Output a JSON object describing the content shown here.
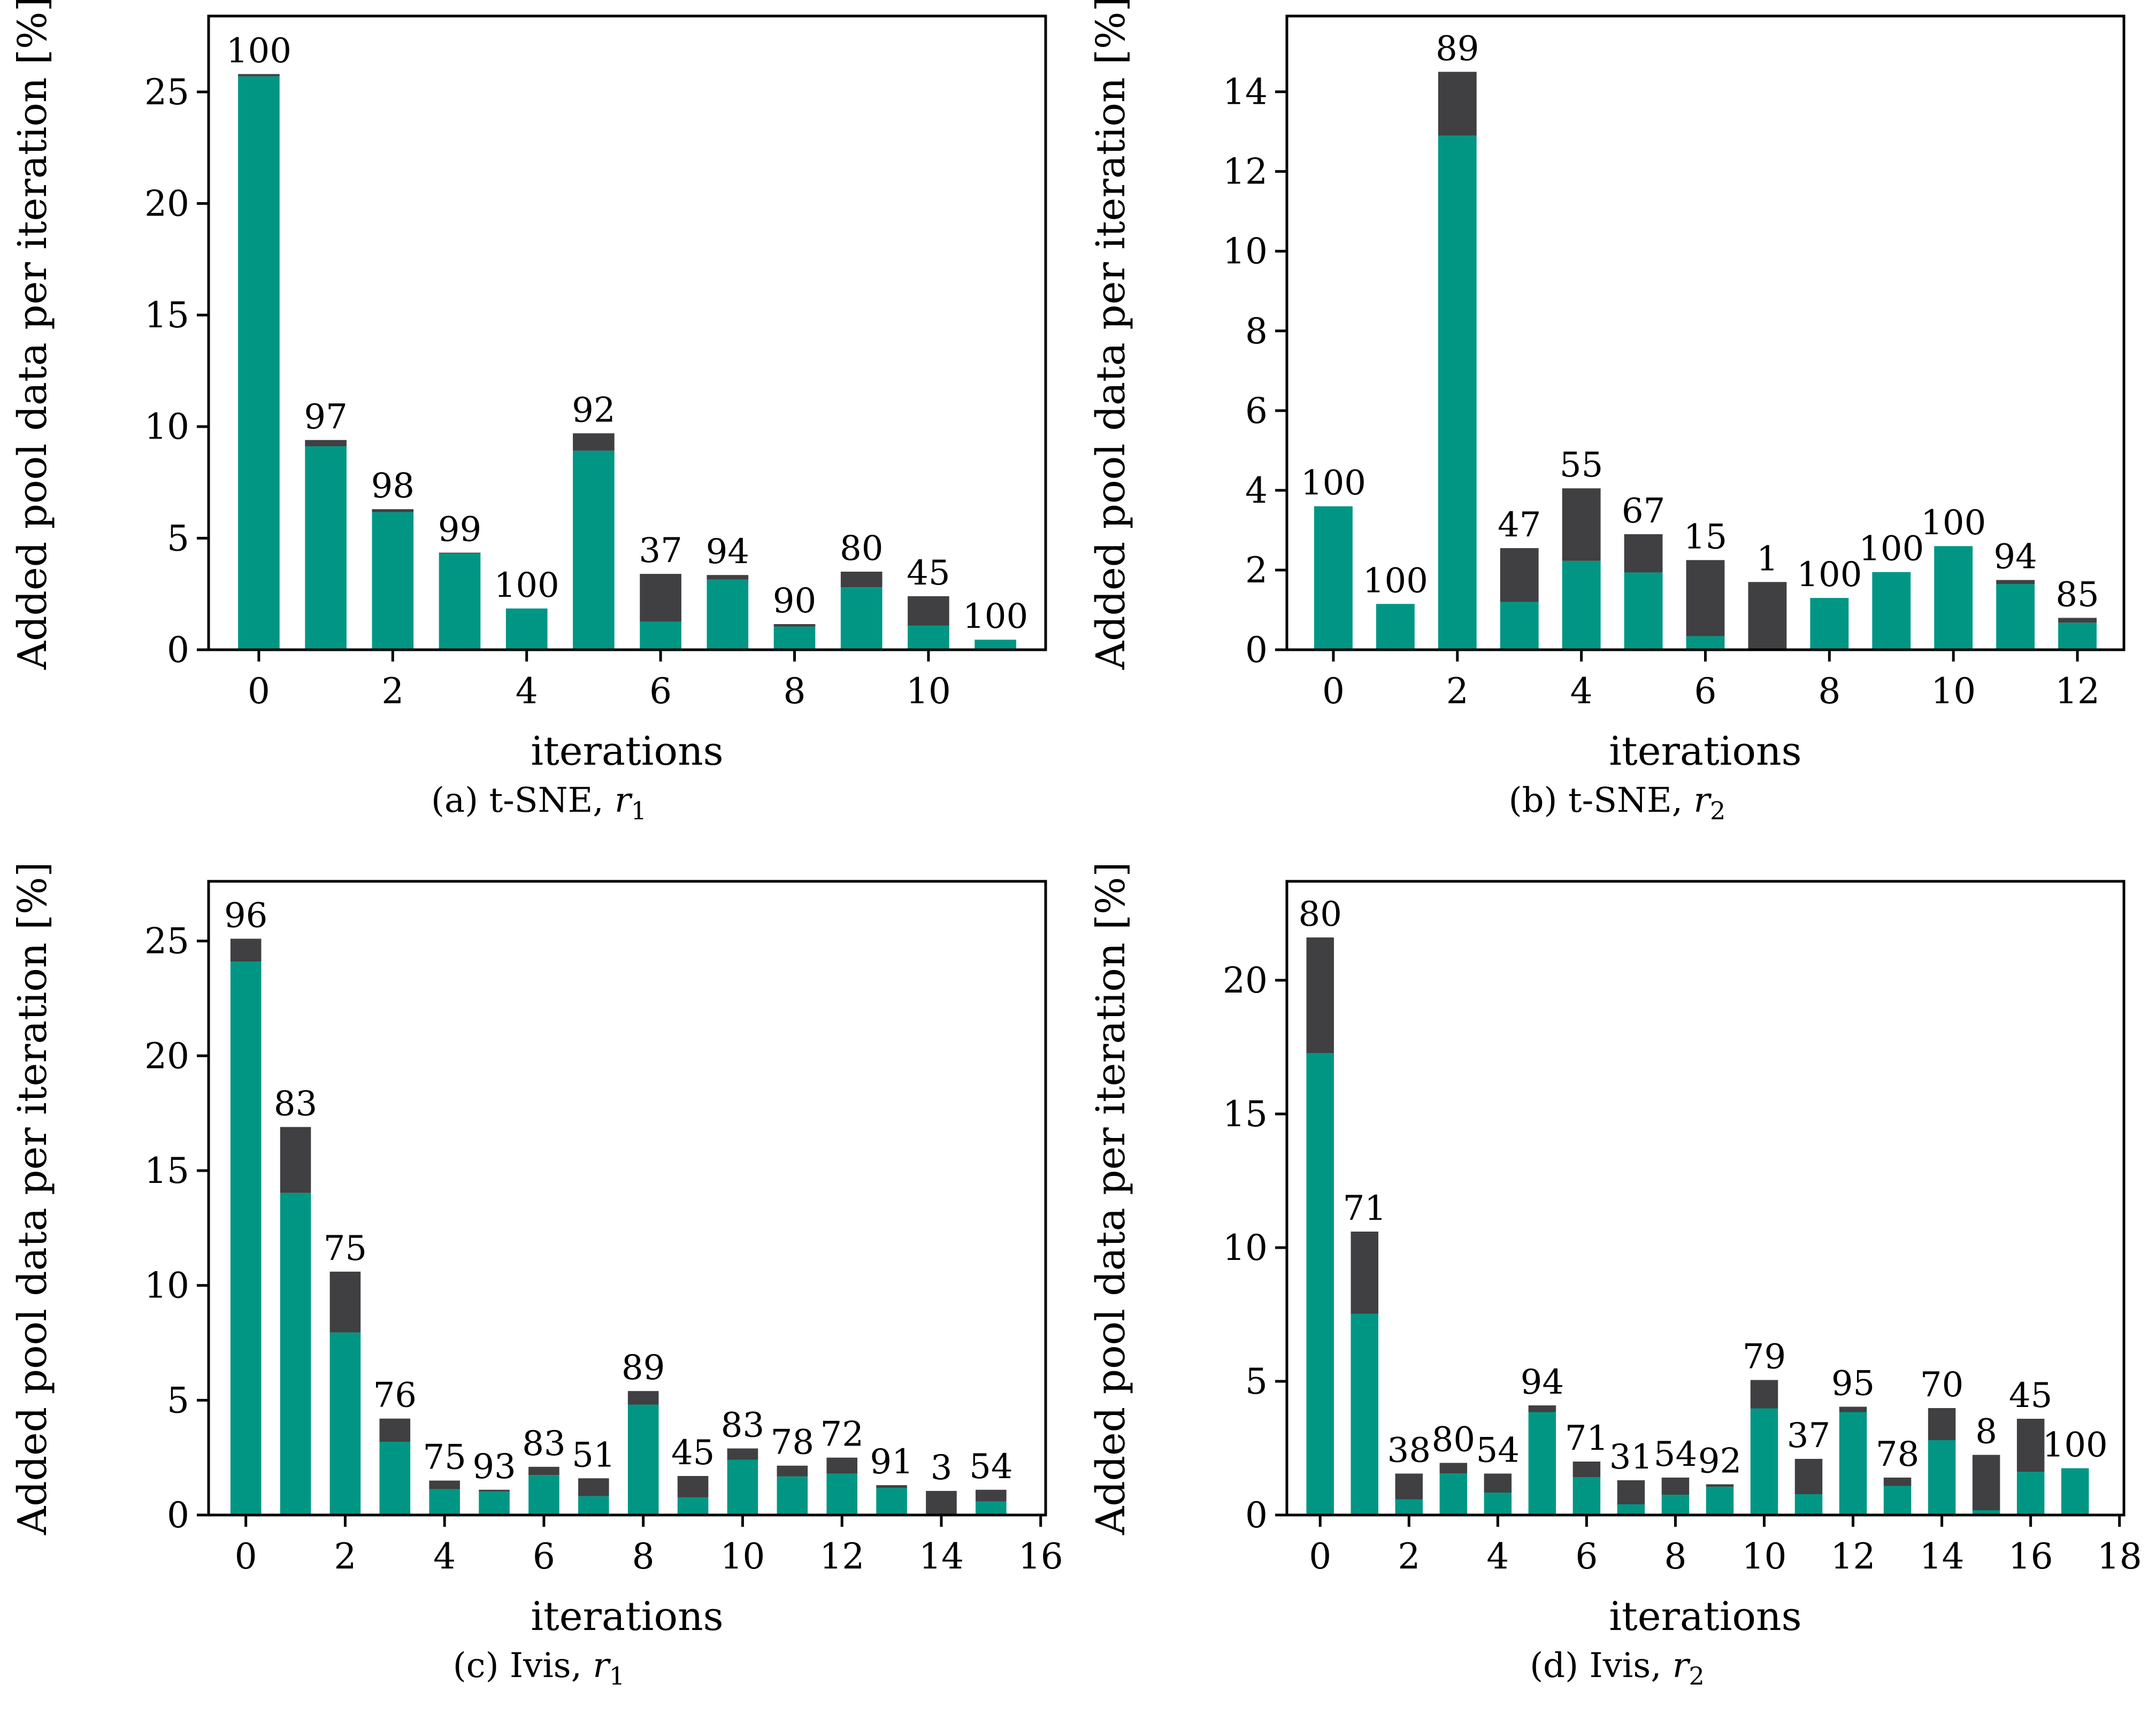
{
  "figure": {
    "background": "#ffffff",
    "teal_color": "#019684",
    "dark_color": "#403f41",
    "axis_color": "#000000",
    "legend": "none"
  },
  "axes": {
    "ylabel": "Added pool data per iteration [%]",
    "xlabel": "iterations"
  },
  "chart_data": [
    {
      "type": "bar",
      "stacked": true,
      "title": "",
      "caption": {
        "prefix": "(a) t-SNE, ",
        "var": "r",
        "sub": "1"
      },
      "x": [
        0,
        1,
        2,
        3,
        4,
        5,
        6,
        7,
        8,
        9,
        10,
        11
      ],
      "series": [
        {
          "name": "teal-segment",
          "values": [
            25.7,
            9.12,
            6.17,
            4.31,
            1.85,
            8.92,
            1.26,
            3.15,
            1.04,
            2.8,
            1.08,
            0.45
          ]
        },
        {
          "name": "dark-segment",
          "values": [
            0.1,
            0.28,
            0.13,
            0.04,
            0.0,
            0.78,
            2.14,
            0.2,
            0.11,
            0.7,
            1.32,
            0.0
          ]
        }
      ],
      "bar_labels": [
        100,
        97,
        98,
        99,
        100,
        92,
        37,
        94,
        90,
        80,
        45,
        100
      ],
      "yticks": [
        0,
        5,
        10,
        15,
        20,
        25
      ],
      "ylim": [
        0,
        28.4
      ],
      "xticks": [
        0,
        2,
        4,
        6,
        8,
        10
      ],
      "xlim": [
        -0.75,
        11.75
      ],
      "grid": false
    },
    {
      "type": "bar",
      "stacked": true,
      "title": "",
      "caption": {
        "prefix": "(b) t-SNE, ",
        "var": "r",
        "sub": "2"
      },
      "x": [
        0,
        1,
        2,
        3,
        4,
        5,
        6,
        7,
        8,
        9,
        10,
        11,
        12
      ],
      "series": [
        {
          "name": "teal-segment",
          "values": [
            3.6,
            1.15,
            12.9,
            1.2,
            2.23,
            1.94,
            0.34,
            0.02,
            1.3,
            1.95,
            2.6,
            1.65,
            0.68
          ]
        },
        {
          "name": "dark-segment",
          "values": [
            0.0,
            0.0,
            1.6,
            1.35,
            1.82,
            0.96,
            1.91,
            1.68,
            0.0,
            0.0,
            0.0,
            0.1,
            0.12
          ]
        }
      ],
      "bar_labels": [
        100,
        100,
        89,
        47,
        55,
        67,
        15,
        1,
        100,
        100,
        100,
        94,
        85
      ],
      "yticks": [
        0,
        2,
        4,
        6,
        8,
        10,
        12,
        14
      ],
      "ylim": [
        0,
        15.9
      ],
      "xticks": [
        0,
        2,
        4,
        6,
        8,
        10,
        12
      ],
      "xlim": [
        -0.75,
        12.75
      ],
      "grid": false
    },
    {
      "type": "bar",
      "stacked": true,
      "title": "",
      "caption": {
        "prefix": "(c) Ivis, ",
        "var": "r",
        "sub": "1"
      },
      "x": [
        0,
        1,
        2,
        3,
        4,
        5,
        6,
        7,
        8,
        9,
        10,
        11,
        12,
        13,
        14,
        15
      ],
      "series": [
        {
          "name": "teal-segment",
          "values": [
            24.1,
            14.03,
            7.95,
            3.19,
            1.13,
            1.02,
            1.74,
            0.82,
            4.81,
            0.77,
            2.41,
            1.68,
            1.8,
            1.18,
            0.03,
            0.59
          ]
        },
        {
          "name": "dark-segment",
          "values": [
            1.0,
            2.87,
            2.65,
            1.01,
            0.37,
            0.08,
            0.36,
            0.78,
            0.59,
            0.93,
            0.49,
            0.47,
            0.7,
            0.12,
            1.02,
            0.51
          ]
        }
      ],
      "bar_labels": [
        96,
        83,
        75,
        76,
        75,
        93,
        83,
        51,
        89,
        45,
        83,
        78,
        72,
        91,
        3,
        54
      ],
      "yticks": [
        0,
        5,
        10,
        15,
        20,
        25
      ],
      "ylim": [
        0,
        27.6
      ],
      "xticks": [
        0,
        2,
        4,
        6,
        8,
        10,
        12,
        14,
        16
      ],
      "xlim": [
        -0.75,
        16.1
      ],
      "grid": false
    },
    {
      "type": "bar",
      "stacked": true,
      "title": "",
      "caption": {
        "prefix": "(d) Ivis, ",
        "var": "r",
        "sub": "2"
      },
      "x": [
        0,
        1,
        2,
        3,
        4,
        5,
        6,
        7,
        8,
        9,
        10,
        11,
        12,
        13,
        14,
        15,
        16,
        17
      ],
      "series": [
        {
          "name": "teal-segment",
          "values": [
            17.28,
            7.53,
            0.59,
            1.56,
            0.84,
            3.85,
            1.42,
            0.4,
            0.76,
            1.06,
            3.99,
            0.78,
            3.85,
            1.09,
            2.8,
            0.18,
            1.62,
            1.75
          ]
        },
        {
          "name": "dark-segment",
          "values": [
            4.32,
            3.07,
            0.96,
            0.39,
            0.71,
            0.25,
            0.58,
            0.9,
            0.64,
            0.09,
            1.06,
            1.32,
            0.2,
            0.31,
            1.2,
            2.07,
            1.98,
            0.0
          ]
        }
      ],
      "bar_labels": [
        80,
        71,
        38,
        80,
        54,
        94,
        71,
        31,
        54,
        92,
        79,
        37,
        95,
        78,
        70,
        8,
        45,
        100
      ],
      "yticks": [
        0,
        5,
        10,
        15,
        20
      ],
      "ylim": [
        0,
        23.7
      ],
      "xticks": [
        0,
        2,
        4,
        6,
        8,
        10,
        12,
        14,
        16,
        18
      ],
      "xlim": [
        -0.75,
        18.1
      ],
      "grid": false
    }
  ]
}
